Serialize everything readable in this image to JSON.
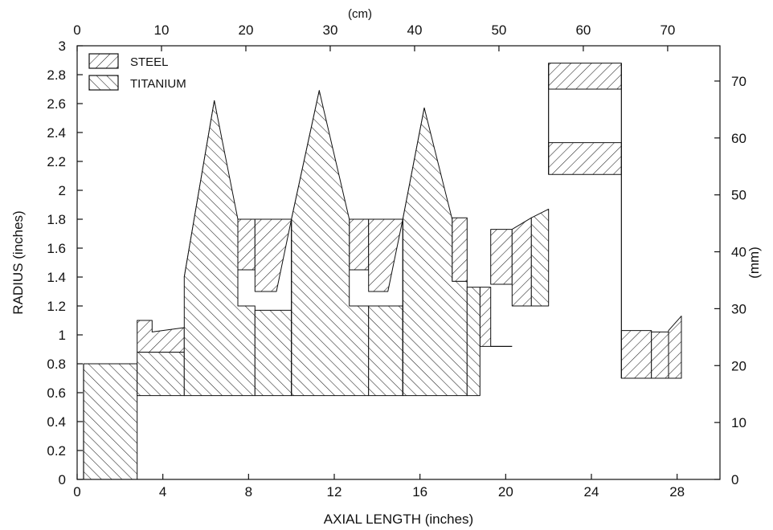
{
  "chart_data": {
    "type": "area",
    "xlabel": "AXIAL LENGTH (inches)",
    "ylabel": "RADIUS (inches)",
    "x2label": "(cm)",
    "y2label": "(mm)",
    "xlim": [
      0,
      30
    ],
    "ylim": [
      0,
      3
    ],
    "x_ticks": [
      0,
      4,
      8,
      12,
      16,
      20,
      24,
      28
    ],
    "y_ticks": [
      0,
      0.2,
      0.4,
      0.6,
      0.8,
      1,
      1.2,
      1.4,
      1.6,
      1.8,
      2,
      2.2,
      2.4,
      2.6,
      2.8,
      3
    ],
    "x2_ticks": [
      0,
      10,
      20,
      30,
      40,
      50,
      60,
      70
    ],
    "y2_ticks": [
      0,
      10,
      20,
      30,
      40,
      50,
      60,
      70
    ],
    "legend": {
      "placement": "top-left",
      "entries": [
        {
          "label": "STEEL",
          "pattern": "hatch-forward"
        },
        {
          "label": "TITANIUM",
          "pattern": "hatch-backward"
        }
      ]
    },
    "series": [
      {
        "name": "STEEL",
        "regions": [
          [
            [
              2.8,
              1.1
            ],
            [
              3.5,
              1.1
            ],
            [
              3.5,
              1.02
            ],
            [
              5.0,
              1.05
            ],
            [
              5.0,
              0.88
            ],
            [
              2.8,
              0.88
            ]
          ],
          [
            [
              5.0,
              1.4
            ],
            [
              6.4,
              2.62
            ],
            [
              6.8,
              2.3
            ],
            [
              6.8,
              1.4
            ]
          ],
          [
            [
              7.5,
              1.8
            ],
            [
              8.3,
              1.8
            ],
            [
              8.3,
              1.45
            ],
            [
              7.5,
              1.45
            ]
          ],
          [
            [
              8.3,
              1.8
            ],
            [
              10.0,
              1.8
            ],
            [
              9.3,
              1.3
            ],
            [
              8.3,
              1.3
            ]
          ],
          [
            [
              10.0,
              1.8
            ],
            [
              11.3,
              2.69
            ],
            [
              11.6,
              2.4
            ],
            [
              11.6,
              1.8
            ]
          ],
          [
            [
              12.7,
              1.8
            ],
            [
              13.6,
              1.8
            ],
            [
              13.6,
              1.45
            ],
            [
              12.7,
              1.45
            ]
          ],
          [
            [
              13.6,
              1.8
            ],
            [
              15.2,
              1.8
            ],
            [
              14.5,
              1.3
            ],
            [
              13.6,
              1.3
            ]
          ],
          [
            [
              15.2,
              1.8
            ],
            [
              16.2,
              2.57
            ],
            [
              16.6,
              2.3
            ],
            [
              16.6,
              1.8
            ]
          ],
          [
            [
              17.5,
              1.81
            ],
            [
              18.2,
              1.81
            ],
            [
              18.2,
              1.37
            ],
            [
              17.5,
              1.37
            ]
          ],
          [
            [
              18.8,
              1.33
            ],
            [
              19.3,
              1.33
            ],
            [
              19.3,
              0.92
            ],
            [
              18.8,
              0.92
            ]
          ],
          [
            [
              19.3,
              1.73
            ],
            [
              20.3,
              1.73
            ],
            [
              20.3,
              1.35
            ],
            [
              19.3,
              1.35
            ]
          ],
          [
            [
              20.3,
              1.73
            ],
            [
              21.2,
              1.81
            ],
            [
              21.2,
              1.2
            ],
            [
              20.3,
              1.2
            ]
          ],
          [
            [
              22.0,
              2.88
            ],
            [
              25.4,
              2.88
            ],
            [
              25.4,
              2.7
            ],
            [
              22.0,
              2.7
            ]
          ],
          [
            [
              22.0,
              2.33
            ],
            [
              25.4,
              2.33
            ],
            [
              25.4,
              2.11
            ],
            [
              22.0,
              2.11
            ]
          ],
          [
            [
              25.4,
              1.03
            ],
            [
              26.8,
              1.03
            ],
            [
              26.8,
              0.7
            ],
            [
              25.4,
              0.7
            ]
          ],
          [
            [
              26.8,
              1.02
            ],
            [
              27.6,
              1.02
            ],
            [
              27.6,
              0.7
            ],
            [
              26.8,
              0.7
            ]
          ],
          [
            [
              27.6,
              1.03
            ],
            [
              28.2,
              1.13
            ],
            [
              28.2,
              0.7
            ],
            [
              27.6,
              0.7
            ]
          ]
        ]
      },
      {
        "name": "TITANIUM",
        "regions": [
          [
            [
              0.3,
              0.8
            ],
            [
              2.8,
              0.8
            ],
            [
              2.8,
              0.0
            ],
            [
              0.3,
              0.0
            ]
          ],
          [
            [
              2.8,
              0.88
            ],
            [
              5.0,
              0.88
            ],
            [
              5.0,
              0.58
            ],
            [
              2.8,
              0.58
            ]
          ],
          [
            [
              5.0,
              0.58
            ],
            [
              5.0,
              1.4
            ],
            [
              6.4,
              2.62
            ],
            [
              7.5,
              1.8
            ],
            [
              7.5,
              1.2
            ],
            [
              8.3,
              1.2
            ],
            [
              8.3,
              0.58
            ]
          ],
          [
            [
              8.3,
              0.58
            ],
            [
              8.3,
              1.17
            ],
            [
              10.0,
              1.17
            ],
            [
              10.0,
              0.58
            ]
          ],
          [
            [
              10.0,
              0.58
            ],
            [
              10.0,
              1.8
            ],
            [
              11.3,
              2.69
            ],
            [
              12.7,
              1.8
            ],
            [
              12.7,
              1.2
            ],
            [
              13.6,
              1.2
            ],
            [
              13.6,
              0.58
            ]
          ],
          [
            [
              13.6,
              0.58
            ],
            [
              13.6,
              1.2
            ],
            [
              15.2,
              1.2
            ],
            [
              15.2,
              0.58
            ]
          ],
          [
            [
              15.2,
              0.58
            ],
            [
              15.2,
              1.8
            ],
            [
              16.2,
              2.57
            ],
            [
              17.5,
              1.8
            ],
            [
              17.5,
              1.37
            ],
            [
              18.2,
              1.37
            ],
            [
              18.2,
              0.58
            ]
          ],
          [
            [
              18.2,
              0.58
            ],
            [
              18.2,
              1.33
            ],
            [
              18.8,
              1.33
            ],
            [
              18.8,
              0.58
            ]
          ],
          [
            [
              21.2,
              1.81
            ],
            [
              22.0,
              1.87
            ],
            [
              22.0,
              1.2
            ],
            [
              21.2,
              1.2
            ]
          ]
        ]
      }
    ],
    "outline_segments": [
      [
        [
          0.3,
          0.8
        ],
        [
          0.3,
          0.0
        ]
      ],
      [
        [
          22.0,
          2.11
        ],
        [
          22.0,
          2.88
        ]
      ],
      [
        [
          25.4,
          2.11
        ],
        [
          25.4,
          2.88
        ]
      ],
      [
        [
          25.4,
          0.7
        ],
        [
          25.4,
          2.11
        ]
      ],
      [
        [
          10.0,
          0.58
        ],
        [
          10.0,
          1.8
        ]
      ],
      [
        [
          15.2,
          0.58
        ],
        [
          15.2,
          1.8
        ]
      ],
      [
        [
          19.3,
          0.92
        ],
        [
          20.3,
          0.92
        ]
      ]
    ]
  }
}
